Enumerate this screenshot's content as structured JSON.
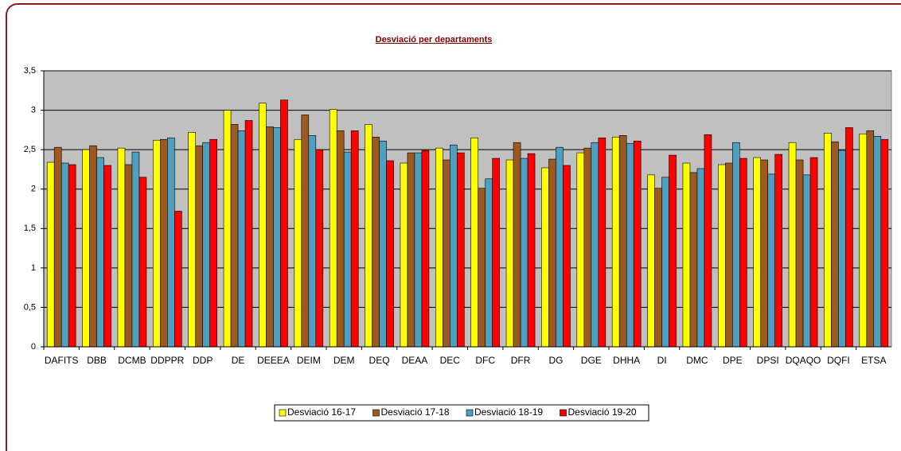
{
  "chart_data": {
    "type": "bar",
    "title": "Desviació per departaments",
    "categories": [
      "DAFITS",
      "DBB",
      "DCMB",
      "DDPPR",
      "DDP",
      "DE",
      "DEEEA",
      "DEIM",
      "DEM",
      "DEQ",
      "DEAA",
      "DEC",
      "DFC",
      "DFR",
      "DG",
      "DGE",
      "DHHA",
      "DI",
      "DMC",
      "DPE",
      "DPSI",
      "DQAQO",
      "DQFI",
      "ETSA"
    ],
    "series": [
      {
        "name": "Desviació 16-17",
        "color": "#ffff00",
        "values": [
          2.34,
          2.5,
          2.52,
          2.62,
          2.72,
          3.0,
          3.09,
          2.63,
          3.01,
          2.82,
          2.33,
          2.52,
          2.65,
          2.37,
          2.27,
          2.46,
          2.66,
          2.18,
          2.33,
          2.31,
          2.4,
          2.59,
          2.71,
          2.7
        ]
      },
      {
        "name": "Desviació 17-18",
        "color": "#9c5a22",
        "values": [
          2.53,
          2.55,
          2.31,
          2.63,
          2.55,
          2.82,
          2.79,
          2.94,
          2.74,
          2.66,
          2.46,
          2.37,
          2.01,
          2.59,
          2.38,
          2.52,
          2.68,
          2.01,
          2.21,
          2.33,
          2.37,
          2.37,
          2.6,
          2.74
        ]
      },
      {
        "name": "Desviació 18-19",
        "color": "#4fa0c0",
        "values": [
          2.33,
          2.4,
          2.47,
          2.65,
          2.59,
          2.74,
          2.78,
          2.68,
          2.47,
          2.61,
          2.46,
          2.56,
          2.13,
          2.39,
          2.53,
          2.59,
          2.58,
          2.15,
          2.26,
          2.59,
          2.19,
          2.18,
          2.49,
          2.67
        ]
      },
      {
        "name": "Desviació 19-20",
        "color": "#ff0000",
        "values": [
          2.31,
          2.3,
          2.15,
          1.72,
          2.63,
          2.87,
          3.13,
          2.5,
          2.74,
          2.36,
          2.49,
          2.46,
          2.39,
          2.45,
          2.3,
          2.65,
          2.61,
          2.43,
          2.69,
          2.39,
          2.44,
          2.4,
          2.78,
          2.63
        ]
      }
    ],
    "ylim": [
      0,
      3.5
    ],
    "yticks": [
      0,
      {
        "value": 0.5,
        "label": "0,5"
      },
      1,
      {
        "value": 1.5,
        "label": "1,5"
      },
      2,
      {
        "value": 2.5,
        "label": "2,5"
      },
      3,
      {
        "value": 3.5,
        "label": "3,5"
      }
    ],
    "grid": true,
    "legend": "bottom"
  }
}
